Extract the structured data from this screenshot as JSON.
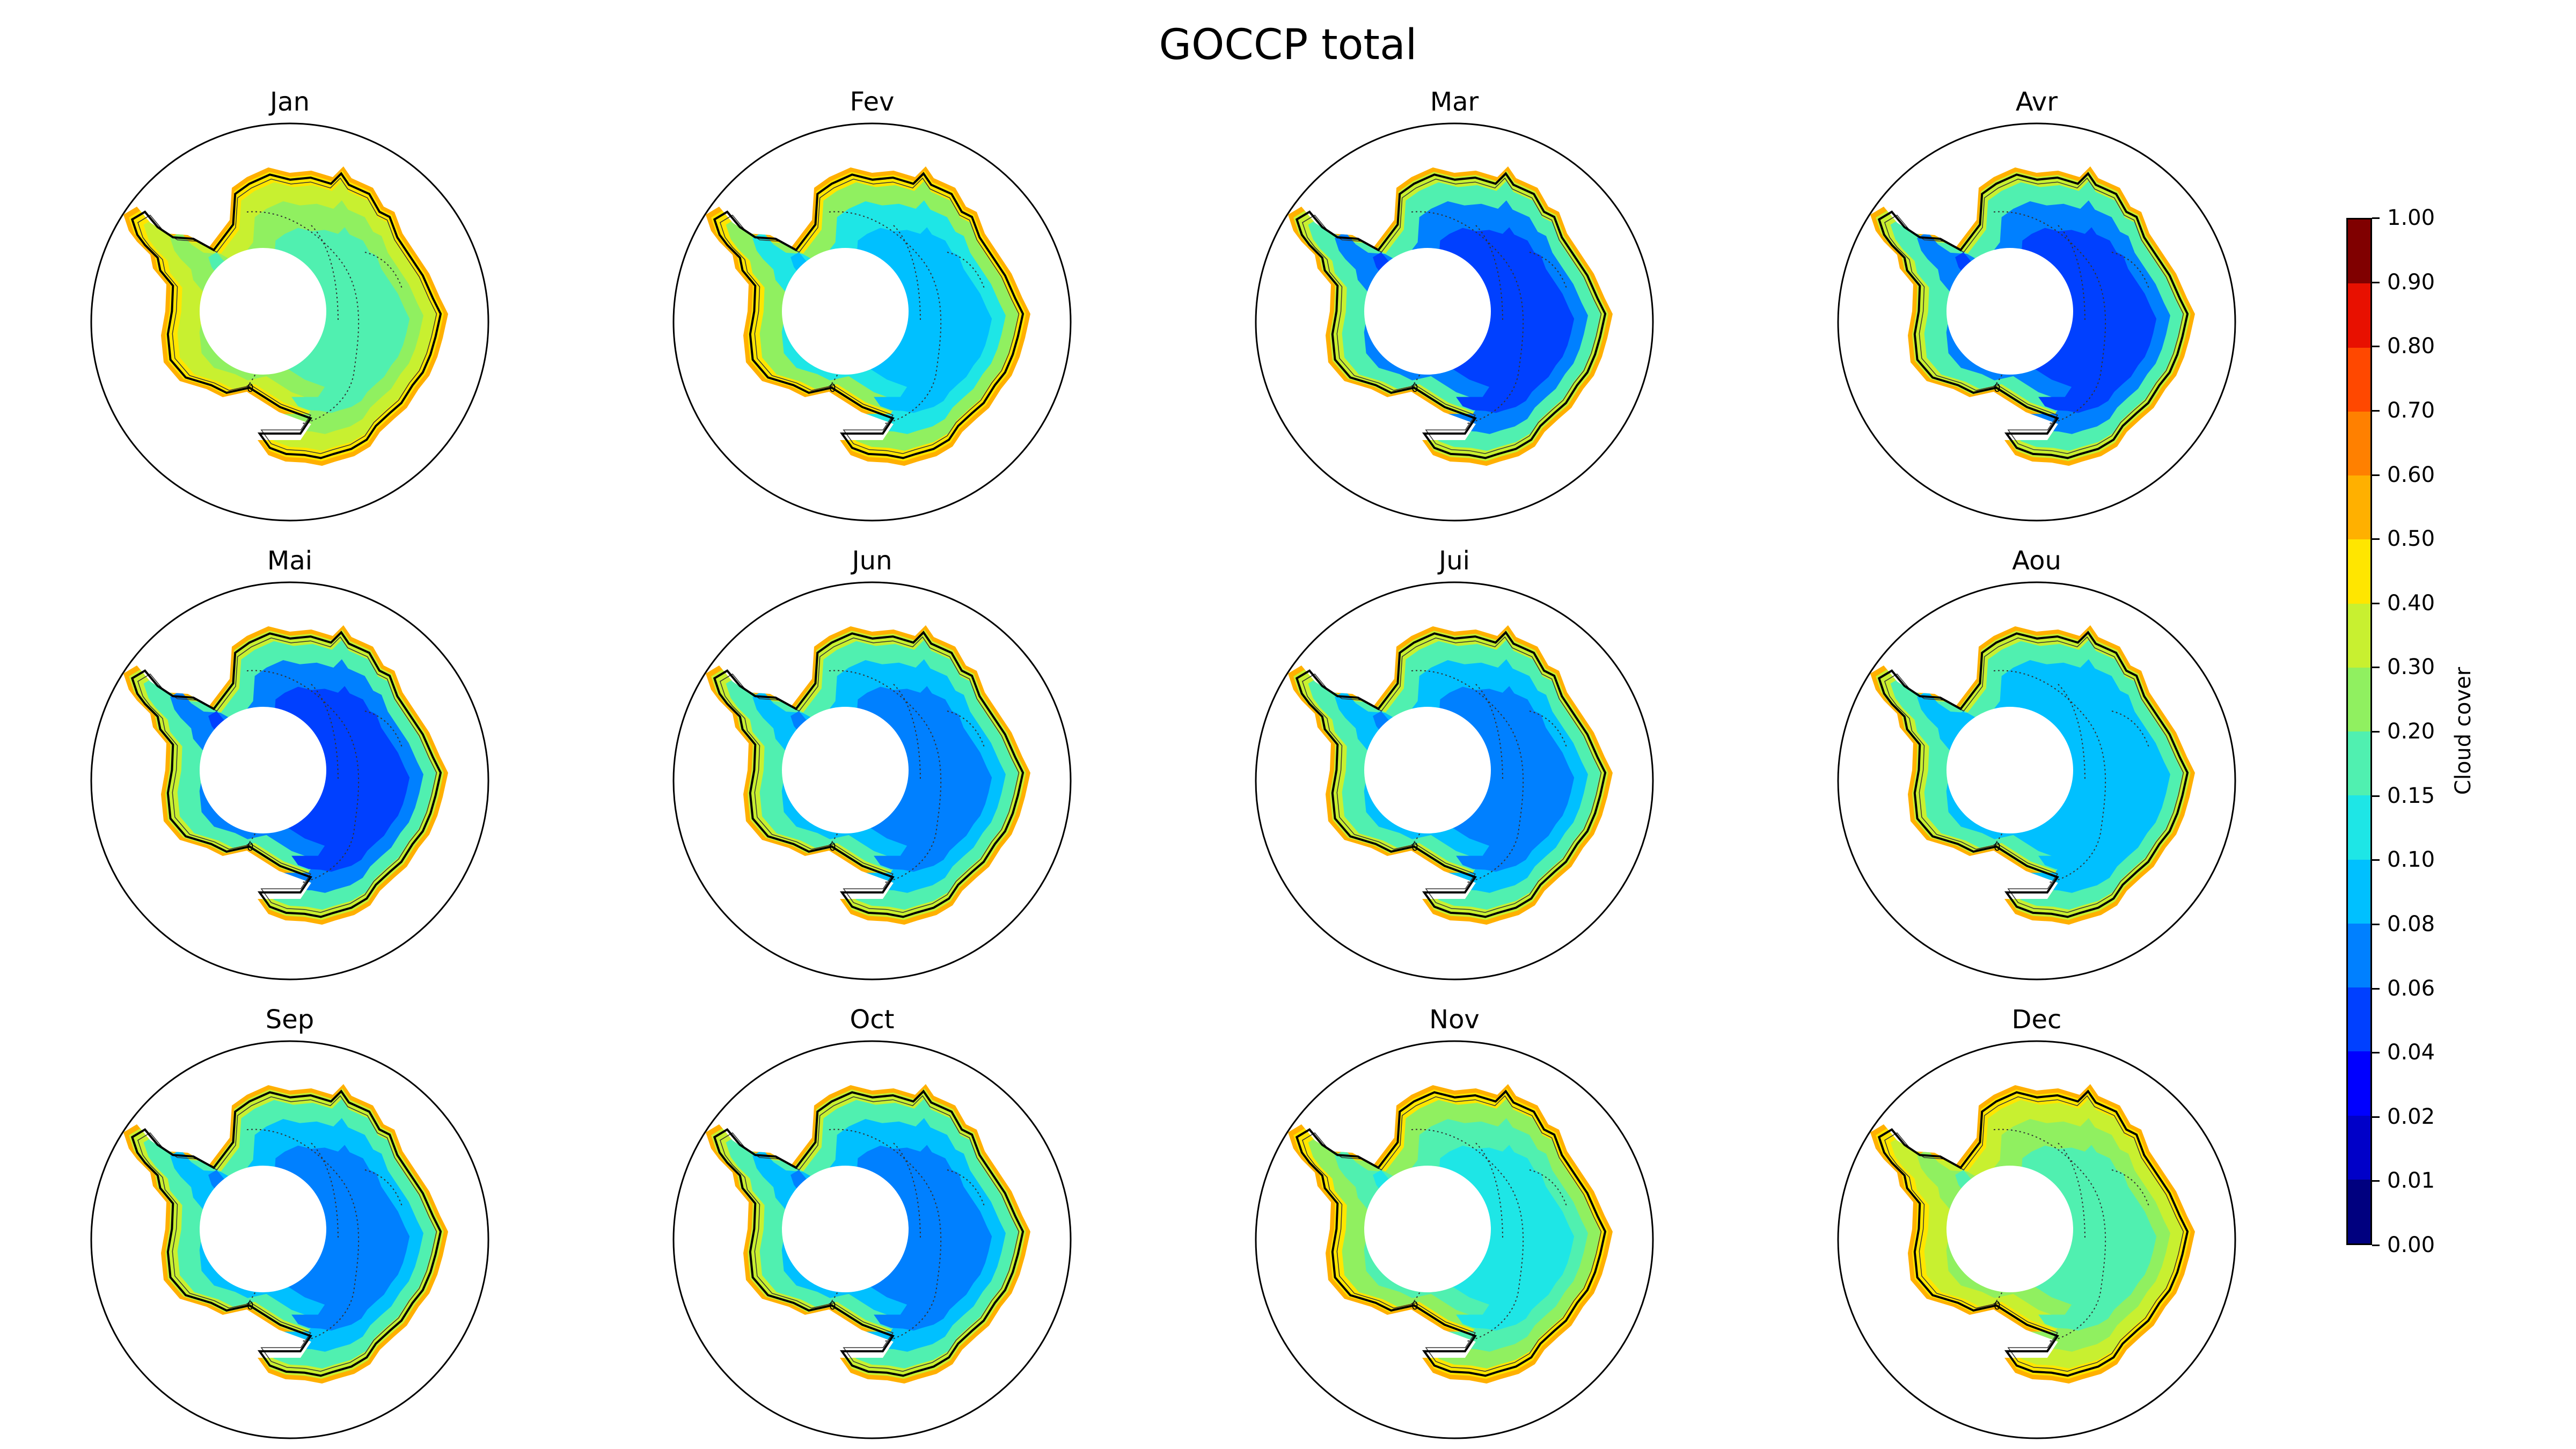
{
  "figure": {
    "title": "GOCCP total"
  },
  "panels": [
    {
      "title": "Jan",
      "interior_level": 7,
      "east_level": 8,
      "coast_level": 9,
      "west_level": 10,
      "peninsula_level": 11
    },
    {
      "title": "Fev",
      "interior_level": 5,
      "east_level": 6,
      "coast_level": 8,
      "west_level": 10,
      "peninsula_level": 11
    },
    {
      "title": "Mar",
      "interior_level": 3,
      "east_level": 4,
      "coast_level": 7,
      "west_level": 9,
      "peninsula_level": 11
    },
    {
      "title": "Avr",
      "interior_level": 3,
      "east_level": 4,
      "coast_level": 7,
      "west_level": 9,
      "peninsula_level": 11
    },
    {
      "title": "Mai",
      "interior_level": 3,
      "east_level": 4,
      "coast_level": 7,
      "west_level": 9,
      "peninsula_level": 11
    },
    {
      "title": "Jun",
      "interior_level": 4,
      "east_level": 5,
      "coast_level": 7,
      "west_level": 9,
      "peninsula_level": 11
    },
    {
      "title": "Jui",
      "interior_level": 4,
      "east_level": 5,
      "coast_level": 7,
      "west_level": 9,
      "peninsula_level": 11
    },
    {
      "title": "Aou",
      "interior_level": 5,
      "east_level": 5,
      "coast_level": 7,
      "west_level": 9,
      "peninsula_level": 11
    },
    {
      "title": "Sep",
      "interior_level": 4,
      "east_level": 5,
      "coast_level": 7,
      "west_level": 9,
      "peninsula_level": 11
    },
    {
      "title": "Oct",
      "interior_level": 4,
      "east_level": 5,
      "coast_level": 7,
      "west_level": 9,
      "peninsula_level": 11
    },
    {
      "title": "Nov",
      "interior_level": 6,
      "east_level": 7,
      "coast_level": 8,
      "west_level": 10,
      "peninsula_level": 11
    },
    {
      "title": "Dec",
      "interior_level": 7,
      "east_level": 8,
      "coast_level": 9,
      "west_level": 10,
      "peninsula_level": 11
    }
  ],
  "colorbar": {
    "label": "Cloud cover",
    "ticks": [
      "0.00",
      "0.01",
      "0.02",
      "0.04",
      "0.06",
      "0.08",
      "0.10",
      "0.15",
      "0.20",
      "0.30",
      "0.40",
      "0.50",
      "0.60",
      "0.70",
      "0.80",
      "0.90",
      "1.00"
    ],
    "colors": [
      "#00007f",
      "#0000c8",
      "#0000ff",
      "#0040ff",
      "#0080ff",
      "#00c0ff",
      "#1ee6e6",
      "#50f0b0",
      "#90f060",
      "#c8f030",
      "#ffe600",
      "#ffb000",
      "#ff8000",
      "#ff4800",
      "#e81000",
      "#800000"
    ]
  },
  "contour_label": "0"
}
